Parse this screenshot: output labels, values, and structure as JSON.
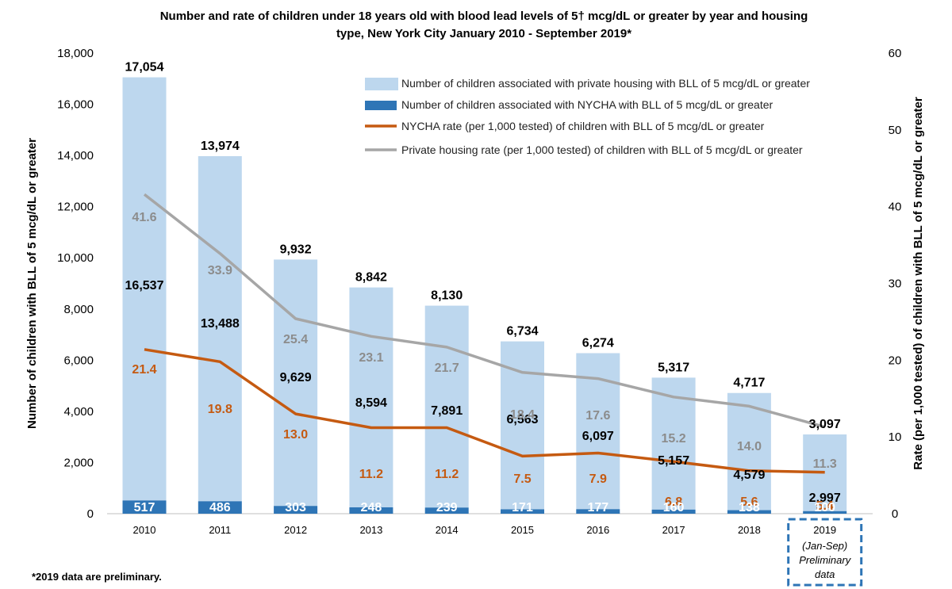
{
  "title_line1": "Number and rate of children under 18 years old with blood lead levels of 5† mcg/dL or greater by year and housing",
  "title_line2": "type, New York City  January 2010 - September 2019*",
  "footnote": "*2019 data are preliminary.",
  "colors": {
    "private_bar": "#bdd7ee",
    "nycha_bar": "#2e75b6",
    "nycha_line": "#c55a11",
    "private_line": "#a6a6a6",
    "nycha_rate_label": "#c55a11",
    "private_rate_label": "#8c8c8c",
    "preliminary_box": "#2e75b6"
  },
  "chart_data": {
    "type": "bar",
    "categories": [
      "2010",
      "2011",
      "2012",
      "2013",
      "2014",
      "2015",
      "2016",
      "2017",
      "2018",
      "2019"
    ],
    "last_category_note": [
      "(Jan-Sep)",
      "Preliminary",
      "data"
    ],
    "totals": [
      17054,
      13974,
      9932,
      8842,
      8130,
      6734,
      6274,
      5317,
      4717,
      3097
    ],
    "total_labels": [
      "17,054",
      "13,974",
      "9,932",
      "8,842",
      "8,130",
      "6,734",
      "6,274",
      "5,317",
      "4,717",
      "3,097"
    ],
    "series": [
      {
        "name": "Number of children associated with private housing with BLL of 5 mcg/dL or greater",
        "kind": "bar",
        "axis": "left",
        "values": [
          16537,
          13488,
          9629,
          8594,
          7891,
          6563,
          6097,
          5157,
          4579,
          2997
        ],
        "labels": [
          "16,537",
          "13,488",
          "9,629",
          "8,594",
          "7,891",
          "6,563",
          "6,097",
          "5,157",
          "4,579",
          "2,997"
        ]
      },
      {
        "name": "Number of children associated with NYCHA with BLL of 5 mcg/dL or greater",
        "kind": "bar",
        "axis": "left",
        "values": [
          517,
          486,
          303,
          248,
          239,
          171,
          177,
          160,
          138,
          100
        ],
        "labels": [
          "517",
          "486",
          "303",
          "248",
          "239",
          "171",
          "177",
          "160",
          "138",
          "100"
        ]
      },
      {
        "name": "NYCHA rate (per 1,000 tested) of children with BLL of 5 mcg/dL or greater",
        "kind": "line",
        "axis": "right",
        "values": [
          21.4,
          19.8,
          13.0,
          11.2,
          11.2,
          7.5,
          7.9,
          6.8,
          5.6,
          5.4
        ],
        "labels": [
          "21.4",
          "19.8",
          "13.0",
          "11.2",
          "11.2",
          "7.5",
          "7.9",
          "6.8",
          "5.6",
          "5.4"
        ]
      },
      {
        "name": "Private housing rate (per 1,000 tested) of children with BLL of 5 mcg/dL or greater",
        "kind": "line",
        "axis": "right",
        "values": [
          41.6,
          33.9,
          25.4,
          23.1,
          21.7,
          18.4,
          17.6,
          15.2,
          14.0,
          11.3
        ],
        "labels": [
          "41.6",
          "33.9",
          "25.4",
          "23.1",
          "21.7",
          "18.4",
          "17.6",
          "15.2",
          "14.0",
          "11.3"
        ]
      }
    ],
    "ylabel_left": "Number of children with BLL of 5 mcg/dL or greater",
    "ylabel_right": "Rate (per 1,000 tested) of children with BLL of 5 mcg/dL or greater",
    "ylim_left": [
      0,
      18000
    ],
    "yticks_left": [
      "0",
      "2,000",
      "4,000",
      "6,000",
      "8,000",
      "10,000",
      "12,000",
      "14,000",
      "16,000",
      "18,000"
    ],
    "ylim_right": [
      0,
      60
    ],
    "yticks_right": [
      "0",
      "10",
      "20",
      "30",
      "40",
      "50",
      "60"
    ],
    "grid": false,
    "legend_position": "top-right"
  }
}
